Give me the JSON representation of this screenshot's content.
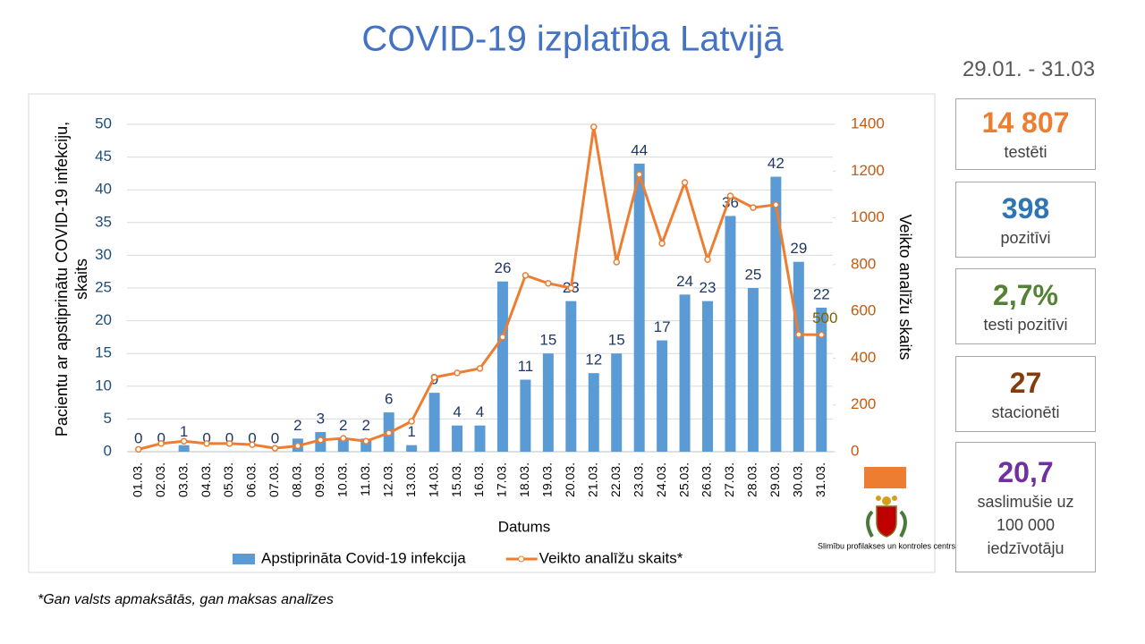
{
  "chart_data": {
    "type": "combo",
    "title": "COVID-19 izplatība Latvijā",
    "x_label": "Datums",
    "y_label": "Pacientu ar apstiprinātu COVID-19 infekciju, skaits",
    "y2_label": "Veikto analīžu skaits",
    "categories": [
      "01.03.",
      "02.03.",
      "03.03.",
      "04.03.",
      "05.03.",
      "06.03.",
      "07.03.",
      "08.03.",
      "09.03.",
      "10.03.",
      "11.03.",
      "12.03.",
      "13.03.",
      "14.03.",
      "15.03.",
      "16.03.",
      "17.03.",
      "18.03.",
      "19.03.",
      "20.03.",
      "21.03.",
      "22.03.",
      "23.03.",
      "24.03.",
      "25.03.",
      "26.03.",
      "27.03.",
      "28.03.",
      "29.03.",
      "30.03.",
      "31.03."
    ],
    "series": [
      {
        "name": "Apstiprināta Covid-19 infekcija",
        "type": "bar",
        "color": "#5b9bd5",
        "data_labels": "all",
        "values": [
          0,
          0,
          1,
          0,
          0,
          0,
          0,
          2,
          3,
          2,
          2,
          6,
          1,
          9,
          4,
          4,
          26,
          11,
          15,
          23,
          12,
          15,
          44,
          17,
          24,
          23,
          36,
          25,
          42,
          29,
          22
        ]
      },
      {
        "name": "Veikto analīžu skaits*",
        "type": "line",
        "axis": "y2",
        "color": "#ed7d31",
        "data_labels": "last",
        "values": [
          10,
          35,
          45,
          35,
          35,
          30,
          15,
          25,
          50,
          57,
          45,
          80,
          130,
          318,
          337,
          356,
          490,
          754,
          720,
          700,
          1389,
          811,
          1186,
          891,
          1151,
          822,
          1094,
          1044,
          1056,
          501,
          500
        ]
      }
    ],
    "ylim": [
      0,
      50
    ],
    "yticks": [
      0,
      5,
      10,
      15,
      20,
      25,
      30,
      35,
      40,
      45,
      50
    ],
    "y2lim": [
      0,
      1400
    ],
    "y2ticks": [
      0,
      200,
      400,
      600,
      800,
      1000,
      1200,
      1400
    ],
    "grid": true,
    "legend": "bottom"
  },
  "summary": {
    "period": "29.01. - 31.03",
    "stats": [
      {
        "value": "14 807",
        "label": "testēti",
        "color": "#ed7d31"
      },
      {
        "value": "398",
        "label": "pozitīvi",
        "color": "#2e75b6"
      },
      {
        "value": "2,7%",
        "label": "testi pozitīvi",
        "color": "#548235"
      },
      {
        "value": "27",
        "label": "stacionēti",
        "color": "#843c0c"
      },
      {
        "value": "20,7",
        "label": "saslimušie uz 100 000 iedzīvotāju",
        "color": "#7030a0"
      }
    ]
  },
  "footnote": "*Gan valsts apmaksātās, gan maksas analīzes",
  "logo_text": "Slimību profilakses un kontroles centrs"
}
